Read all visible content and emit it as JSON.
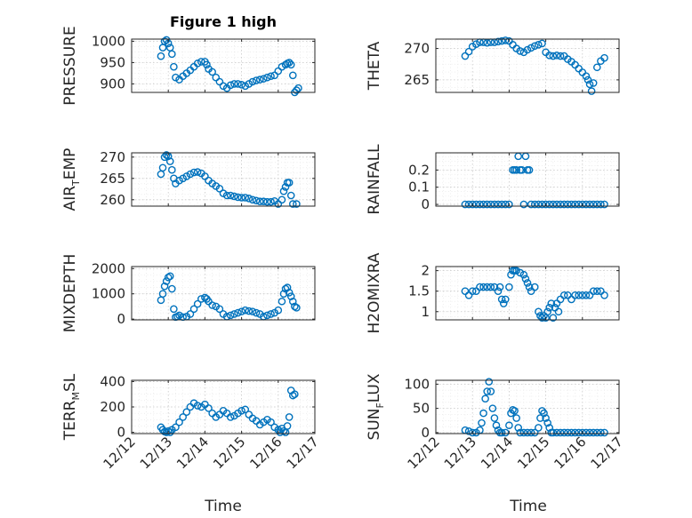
{
  "figure_title": "Figure 1 high",
  "colors": {
    "marker": "#0072BD",
    "axis": "#262626"
  },
  "xtick_labels": [
    "12/12",
    "12/13",
    "12/14",
    "12/15",
    "12/16",
    "12/17"
  ],
  "xlabel": "Time",
  "chart_data": [
    {
      "type": "scatter",
      "id": "pressure",
      "ylabel": "PRESSURE",
      "ylim": [
        880,
        1005
      ],
      "yticks": [
        900,
        950,
        1000
      ],
      "grid": true,
      "x": [
        12.8,
        12.85,
        12.9,
        12.95,
        13.0,
        13.05,
        13.1,
        13.15,
        13.2,
        13.3,
        13.4,
        13.5,
        13.6,
        13.7,
        13.8,
        13.9,
        14.0,
        14.05,
        14.1,
        14.2,
        14.3,
        14.4,
        14.5,
        14.6,
        14.7,
        14.8,
        14.9,
        15.0,
        15.1,
        15.2,
        15.3,
        15.4,
        15.5,
        15.6,
        15.7,
        15.8,
        15.9,
        16.0,
        16.1,
        16.2,
        16.25,
        16.3,
        16.35,
        16.4,
        16.45,
        16.5,
        16.55
      ],
      "y": [
        965,
        985,
        1000,
        1003,
        995,
        985,
        970,
        940,
        915,
        910,
        918,
        925,
        932,
        940,
        948,
        952,
        952,
        945,
        935,
        928,
        915,
        905,
        895,
        890,
        897,
        900,
        900,
        898,
        895,
        900,
        905,
        908,
        910,
        912,
        915,
        918,
        920,
        930,
        940,
        945,
        948,
        950,
        945,
        920,
        880,
        885,
        890
      ]
    },
    {
      "type": "scatter",
      "id": "theta",
      "ylabel": "THETA",
      "ylim": [
        263,
        271.5
      ],
      "yticks": [
        265,
        270
      ],
      "grid": true,
      "x": [
        12.8,
        12.9,
        13.0,
        13.1,
        13.2,
        13.3,
        13.4,
        13.5,
        13.6,
        13.7,
        13.8,
        13.9,
        14.0,
        14.1,
        14.2,
        14.3,
        14.4,
        14.5,
        14.6,
        14.7,
        14.8,
        14.9,
        15.0,
        15.1,
        15.2,
        15.3,
        15.4,
        15.5,
        15.6,
        15.7,
        15.8,
        15.9,
        16.0,
        16.1,
        16.15,
        16.2,
        16.25,
        16.3,
        16.4,
        16.5,
        16.6
      ],
      "y": [
        268.8,
        269.5,
        270.3,
        270.7,
        271.0,
        271.0,
        270.9,
        271.0,
        271.0,
        271.1,
        271.2,
        271.3,
        271.2,
        270.6,
        270.0,
        269.6,
        269.4,
        269.8,
        270.1,
        270.4,
        270.6,
        270.8,
        269.4,
        268.9,
        268.8,
        268.9,
        268.8,
        268.8,
        268.3,
        267.9,
        267.4,
        266.8,
        266.2,
        265.6,
        265.0,
        264.3,
        263.2,
        264.5,
        267.0,
        268.0,
        268.5
      ]
    },
    {
      "type": "scatter",
      "id": "air_temp",
      "ylabel_main": "AIR",
      "ylabel_sub": "T",
      "ylabel_end": "EMP",
      "ylim": [
        258.5,
        271
      ],
      "yticks": [
        260,
        265,
        270
      ],
      "grid": true,
      "x": [
        12.8,
        12.85,
        12.9,
        12.95,
        13.0,
        13.05,
        13.1,
        13.15,
        13.2,
        13.3,
        13.4,
        13.5,
        13.6,
        13.7,
        13.8,
        13.9,
        14.0,
        14.1,
        14.2,
        14.3,
        14.4,
        14.5,
        14.6,
        14.7,
        14.8,
        14.9,
        15.0,
        15.1,
        15.2,
        15.3,
        15.4,
        15.5,
        15.6,
        15.7,
        15.8,
        15.9,
        16.0,
        16.1,
        16.15,
        16.2,
        16.25,
        16.3,
        16.35,
        16.4,
        16.5
      ],
      "y": [
        266.0,
        267.5,
        270.0,
        270.5,
        270.2,
        269.0,
        267.0,
        265.0,
        263.8,
        264.5,
        265.0,
        265.5,
        266.0,
        266.4,
        266.5,
        266.2,
        265.5,
        264.5,
        263.8,
        263.2,
        262.6,
        261.5,
        261.0,
        261.0,
        260.8,
        260.6,
        260.5,
        260.5,
        260.3,
        260.0,
        259.8,
        259.6,
        259.6,
        259.5,
        259.5,
        259.7,
        259.0,
        260.0,
        262.0,
        263.0,
        264.0,
        264.0,
        261.0,
        259.0,
        259.0
      ]
    },
    {
      "type": "scatter",
      "id": "rainfall",
      "ylabel": "RAINFALL",
      "ylim": [
        -0.01,
        0.3
      ],
      "yticks": [
        0,
        0.1,
        0.2
      ],
      "grid": true,
      "x": [
        12.8,
        12.9,
        13.0,
        13.1,
        13.2,
        13.3,
        13.4,
        13.5,
        13.6,
        13.7,
        13.8,
        13.9,
        14.0,
        14.1,
        14.15,
        14.2,
        14.25,
        14.3,
        14.35,
        14.4,
        14.45,
        14.5,
        14.55,
        14.6,
        14.7,
        14.8,
        14.9,
        15.0,
        15.1,
        15.2,
        15.3,
        15.4,
        15.5,
        15.6,
        15.7,
        15.8,
        15.9,
        16.0,
        16.1,
        16.2,
        16.3,
        16.4,
        16.5,
        16.6
      ],
      "y": [
        0,
        0,
        0,
        0,
        0,
        0,
        0,
        0,
        0,
        0,
        0,
        0,
        0,
        0.2,
        0.2,
        0.2,
        0.28,
        0.2,
        0.2,
        0,
        0.28,
        0.2,
        0.2,
        0,
        0,
        0,
        0,
        0,
        0,
        0,
        0,
        0,
        0,
        0,
        0,
        0,
        0,
        0,
        0,
        0,
        0,
        0,
        0,
        0
      ]
    },
    {
      "type": "scatter",
      "id": "mixdepth",
      "ylabel": "MIXDEPTH",
      "ylim": [
        -30,
        2080
      ],
      "yticks": [
        0,
        1000,
        2000
      ],
      "grid": true,
      "x": [
        12.8,
        12.85,
        12.9,
        12.95,
        13.0,
        13.05,
        13.1,
        13.15,
        13.2,
        13.25,
        13.3,
        13.4,
        13.5,
        13.6,
        13.7,
        13.8,
        13.9,
        14.0,
        14.05,
        14.1,
        14.2,
        14.3,
        14.4,
        14.5,
        14.6,
        14.7,
        14.8,
        14.9,
        15.0,
        15.1,
        15.2,
        15.3,
        15.4,
        15.5,
        15.6,
        15.7,
        15.8,
        15.9,
        16.0,
        16.1,
        16.15,
        16.2,
        16.25,
        16.3,
        16.35,
        16.4,
        16.45,
        16.5
      ],
      "y": [
        750,
        1000,
        1300,
        1500,
        1650,
        1700,
        1200,
        400,
        80,
        100,
        150,
        80,
        100,
        200,
        400,
        600,
        800,
        850,
        800,
        700,
        550,
        500,
        400,
        200,
        100,
        150,
        200,
        250,
        300,
        350,
        320,
        300,
        250,
        200,
        100,
        150,
        200,
        250,
        350,
        700,
        1000,
        1200,
        1250,
        1050,
        900,
        700,
        500,
        450
      ]
    },
    {
      "type": "scatter",
      "id": "h2omixra",
      "ylabel": "H2OMIXRA",
      "ylim": [
        0.8,
        2.1
      ],
      "yticks": [
        1,
        1.5,
        2
      ],
      "grid": true,
      "x": [
        12.8,
        12.9,
        13.0,
        13.1,
        13.2,
        13.3,
        13.4,
        13.5,
        13.6,
        13.7,
        13.75,
        13.8,
        13.85,
        13.9,
        14.0,
        14.05,
        14.1,
        14.15,
        14.2,
        14.3,
        14.4,
        14.45,
        14.5,
        14.55,
        14.6,
        14.7,
        14.8,
        14.85,
        14.9,
        14.95,
        15.0,
        15.05,
        15.1,
        15.15,
        15.2,
        15.25,
        15.3,
        15.35,
        15.4,
        15.5,
        15.6,
        15.7,
        15.8,
        15.9,
        16.0,
        16.1,
        16.2,
        16.3,
        16.4,
        16.5,
        16.6
      ],
      "y": [
        1.5,
        1.4,
        1.5,
        1.5,
        1.6,
        1.6,
        1.6,
        1.6,
        1.6,
        1.5,
        1.6,
        1.3,
        1.2,
        1.3,
        1.6,
        1.9,
        2.0,
        2.0,
        2.0,
        1.95,
        1.9,
        1.8,
        1.7,
        1.6,
        1.5,
        1.6,
        1.0,
        0.9,
        0.85,
        0.9,
        0.85,
        1.0,
        1.1,
        1.2,
        0.85,
        1.1,
        1.2,
        1.0,
        1.3,
        1.4,
        1.4,
        1.3,
        1.4,
        1.4,
        1.4,
        1.4,
        1.4,
        1.5,
        1.5,
        1.5,
        1.4
      ]
    },
    {
      "type": "scatter",
      "id": "terr_msl",
      "ylabel_main": "TERR",
      "ylabel_sub": "M",
      "ylabel_end": "SL",
      "ylim": [
        -10,
        410
      ],
      "yticks": [
        0,
        200,
        400
      ],
      "grid": true,
      "x": [
        12.8,
        12.85,
        12.9,
        12.95,
        13.0,
        13.05,
        13.1,
        13.2,
        13.3,
        13.4,
        13.5,
        13.6,
        13.7,
        13.8,
        13.9,
        14.0,
        14.1,
        14.2,
        14.3,
        14.4,
        14.5,
        14.6,
        14.7,
        14.8,
        14.9,
        15.0,
        15.1,
        15.2,
        15.3,
        15.4,
        15.5,
        15.6,
        15.7,
        15.8,
        15.9,
        16.0,
        16.05,
        16.1,
        16.15,
        16.2,
        16.25,
        16.3,
        16.35,
        16.4,
        16.45
      ],
      "y": [
        40,
        20,
        5,
        0,
        10,
        0,
        20,
        40,
        80,
        120,
        160,
        200,
        230,
        210,
        200,
        220,
        190,
        150,
        120,
        140,
        170,
        150,
        120,
        130,
        150,
        170,
        180,
        140,
        110,
        90,
        60,
        80,
        100,
        80,
        40,
        20,
        0,
        30,
        10,
        0,
        50,
        120,
        330,
        290,
        300
      ]
    },
    {
      "type": "scatter",
      "id": "sun_flux",
      "ylabel_main": "SUN",
      "ylabel_sub": "F",
      "ylabel_end": "LUX",
      "ylim": [
        -2,
        108
      ],
      "yticks": [
        0,
        50,
        100
      ],
      "grid": true,
      "x": [
        12.8,
        12.9,
        13.0,
        13.1,
        13.2,
        13.25,
        13.3,
        13.35,
        13.4,
        13.45,
        13.5,
        13.55,
        13.6,
        13.65,
        13.7,
        13.75,
        13.8,
        13.9,
        14.0,
        14.05,
        14.1,
        14.15,
        14.2,
        14.25,
        14.3,
        14.4,
        14.5,
        14.6,
        14.7,
        14.8,
        14.85,
        14.9,
        14.95,
        15.0,
        15.05,
        15.1,
        15.15,
        15.2,
        15.3,
        15.4,
        15.5,
        15.6,
        15.7,
        15.8,
        15.9,
        16.0,
        16.1,
        16.2,
        16.3,
        16.4,
        16.5,
        16.6
      ],
      "y": [
        5,
        3,
        0,
        0,
        5,
        20,
        40,
        70,
        85,
        105,
        85,
        50,
        30,
        15,
        5,
        0,
        0,
        0,
        15,
        40,
        47,
        45,
        30,
        10,
        0,
        0,
        0,
        0,
        0,
        10,
        30,
        45,
        40,
        30,
        20,
        10,
        0,
        0,
        0,
        0,
        0,
        0,
        0,
        0,
        0,
        0,
        0,
        0,
        0,
        0,
        0,
        0
      ]
    }
  ]
}
